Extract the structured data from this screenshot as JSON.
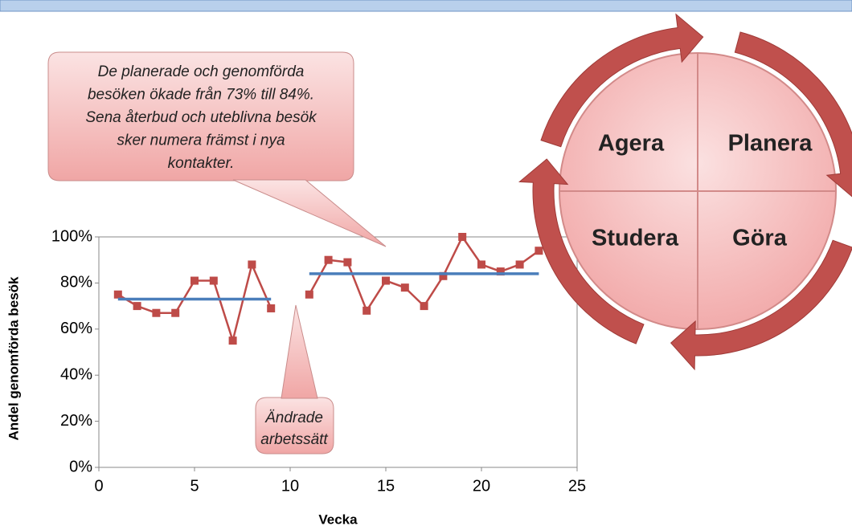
{
  "chart_data": {
    "type": "line",
    "xlabel": "Vecka",
    "ylabel": "Andel genomförda besök",
    "x": [
      1,
      2,
      3,
      4,
      5,
      6,
      7,
      8,
      9,
      10,
      11,
      12,
      13,
      14,
      15,
      16,
      17,
      18,
      19,
      20,
      21,
      22,
      23
    ],
    "series": [
      {
        "color": "#be4b48",
        "marker": "square",
        "values": [
          75,
          70,
          67,
          67,
          81,
          81,
          55,
          88,
          69,
          null,
          75,
          90,
          89,
          68,
          81,
          78,
          70,
          83,
          100,
          88,
          85,
          88,
          94
        ]
      },
      {
        "color": "#4a7ebb",
        "marker": "none",
        "values": [
          73,
          73,
          73,
          73,
          73,
          73,
          73,
          73,
          73,
          null,
          84,
          84,
          84,
          84,
          84,
          84,
          84,
          84,
          84,
          84,
          84,
          84,
          84
        ]
      }
    ],
    "xlim": [
      0,
      25
    ],
    "xticks": [
      0,
      5,
      10,
      15,
      20,
      25
    ],
    "ylim": [
      0,
      100
    ],
    "yticks": [
      {
        "value": 0,
        "label": "0%"
      },
      {
        "value": 20,
        "label": "20%"
      },
      {
        "value": 40,
        "label": "40%"
      },
      {
        "value": 60,
        "label": "60%"
      },
      {
        "value": 80,
        "label": "80%"
      },
      {
        "value": 100,
        "label": "100%"
      }
    ],
    "annotations": [
      {
        "lines": [
          "De planerade och genomförda",
          "besöken ökade från 73% till 84%.",
          "Sena återbud och uteblivna besök",
          "sker numera främst i nya",
          "kontakter."
        ]
      },
      {
        "lines": [
          "Ändrade",
          "arbetssätt"
        ]
      }
    ]
  },
  "cycle": {
    "quadrants": [
      "Agera",
      "Planera",
      "Studera",
      "Göra"
    ]
  }
}
